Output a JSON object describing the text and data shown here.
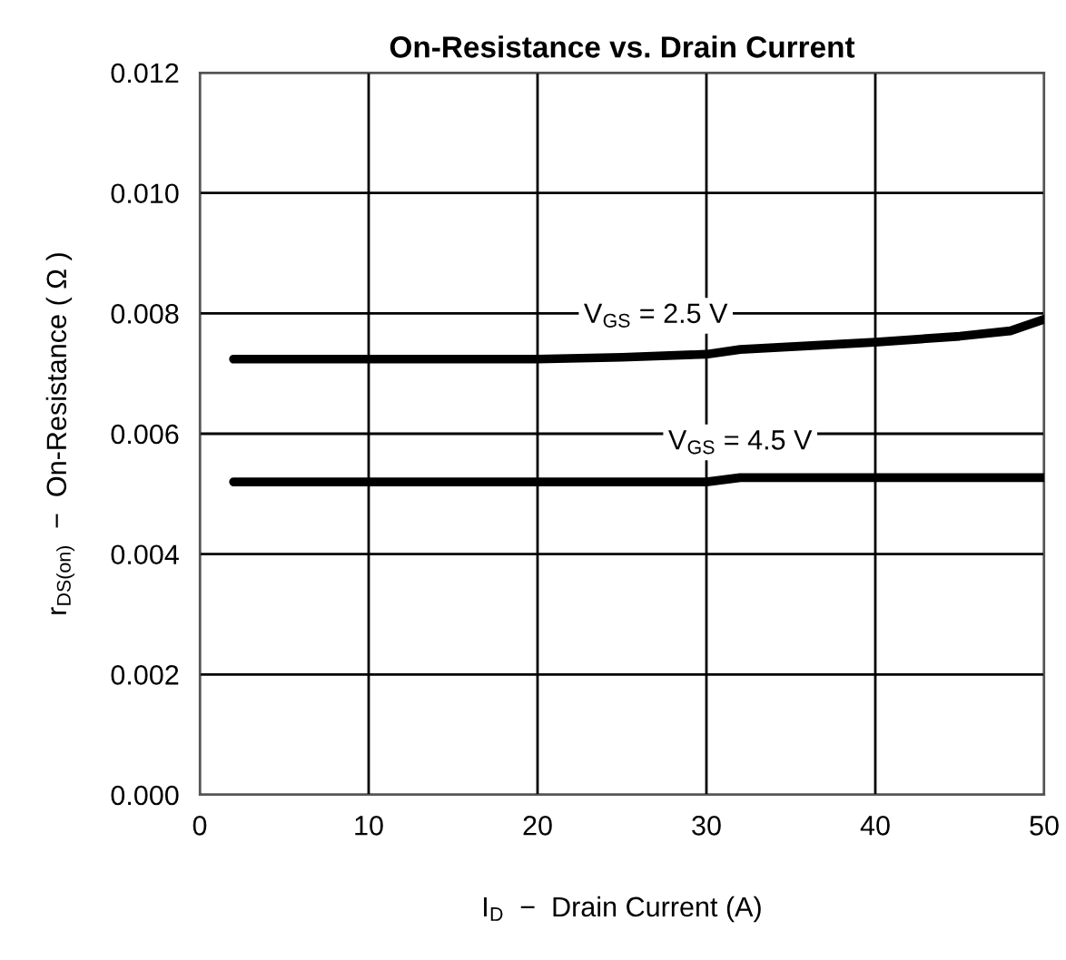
{
  "chart_data": {
    "type": "line",
    "title": "On-Resistance vs. Drain Current",
    "xlabel": "I$_{D}$  −  Drain Current (A)",
    "ylabel": "r$_{DS(on)}$  −  On-Resistance ( Ω )",
    "series": [
      {
        "name": "V$_{GS}$ = 2.5 V",
        "color": "#000000",
        "x": [
          2,
          20,
          25,
          30,
          32,
          40,
          45,
          48,
          50
        ],
        "values": [
          0.00724,
          0.00724,
          0.00727,
          0.00732,
          0.0074,
          0.00752,
          0.00762,
          0.00771,
          0.0079
        ]
      },
      {
        "name": "V$_{GS}$ = 4.5 V",
        "color": "#000000",
        "x": [
          2,
          30,
          32,
          50
        ],
        "values": [
          0.0052,
          0.0052,
          0.00527,
          0.00527
        ]
      }
    ],
    "xlim": [
      0,
      50
    ],
    "xticks": [
      0,
      10,
      20,
      30,
      40,
      50
    ],
    "ylim": [
      0,
      0.012
    ],
    "yticks": [
      {
        "value": 0,
        "label": "0.000"
      },
      {
        "value": 0.002,
        "label": "0.002"
      },
      {
        "value": 0.004,
        "label": "0.004"
      },
      {
        "value": 0.006,
        "label": "0.006"
      },
      {
        "value": 0.008,
        "label": "0.008"
      },
      {
        "value": 0.01,
        "label": "0.010"
      },
      {
        "value": 0.012,
        "label": "0.012"
      }
    ],
    "grid": true,
    "marker": "none",
    "line_style": "solid"
  }
}
